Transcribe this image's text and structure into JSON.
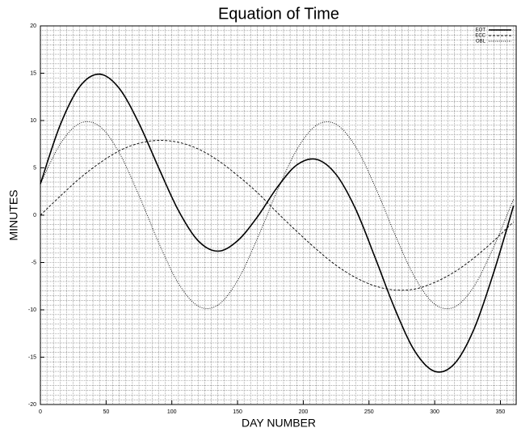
{
  "chart_data": {
    "type": "line",
    "title": "Equation of Time",
    "x_label": "DAY NUMBER",
    "y_label": "MINUTES",
    "x": [
      0,
      15,
      30,
      45,
      60,
      75,
      90,
      105,
      120,
      135,
      150,
      165,
      180,
      195,
      210,
      225,
      240,
      255,
      270,
      285,
      300,
      315,
      330,
      345,
      360
    ],
    "series": [
      {
        "name": "EOT",
        "color": "#000000",
        "dash": "solid",
        "values": [
          3.3,
          9.5,
          13.6,
          14.9,
          13.4,
          9.7,
          5.0,
          0.5,
          -2.7,
          -3.8,
          -2.7,
          -0.2,
          2.9,
          5.3,
          5.9,
          4.3,
          0.6,
          -4.6,
          -10.0,
          -14.4,
          -16.5,
          -15.7,
          -12.0,
          -6.0,
          1.0
        ]
      },
      {
        "name": "ECC",
        "color": "#000000",
        "dash": "dashed",
        "values": [
          0.0,
          2.0,
          3.9,
          5.5,
          6.8,
          7.6,
          7.9,
          7.7,
          7.0,
          5.8,
          4.2,
          2.4,
          0.3,
          -1.7,
          -3.6,
          -5.3,
          -6.6,
          -7.5,
          -7.9,
          -7.8,
          -7.1,
          -6.0,
          -4.5,
          -2.7,
          -0.7
        ]
      },
      {
        "name": "OBL",
        "color": "#000000",
        "dash": "dotted",
        "values": [
          3.3,
          7.5,
          9.7,
          9.4,
          6.6,
          2.1,
          -2.9,
          -7.2,
          -9.6,
          -9.5,
          -6.9,
          -2.5,
          2.5,
          6.9,
          9.5,
          9.6,
          7.2,
          2.9,
          -2.1,
          -6.6,
          -9.4,
          -9.7,
          -7.5,
          -3.3,
          1.7
        ]
      }
    ],
    "xlim": [
      0,
      362
    ],
    "xticks": [
      0,
      50,
      100,
      150,
      200,
      250,
      300,
      350
    ],
    "ylim": [
      -20,
      20
    ],
    "yticks": [
      -20,
      -15,
      -10,
      -5,
      0,
      5,
      10,
      15,
      20
    ],
    "grid": true,
    "legend": "top-right"
  }
}
